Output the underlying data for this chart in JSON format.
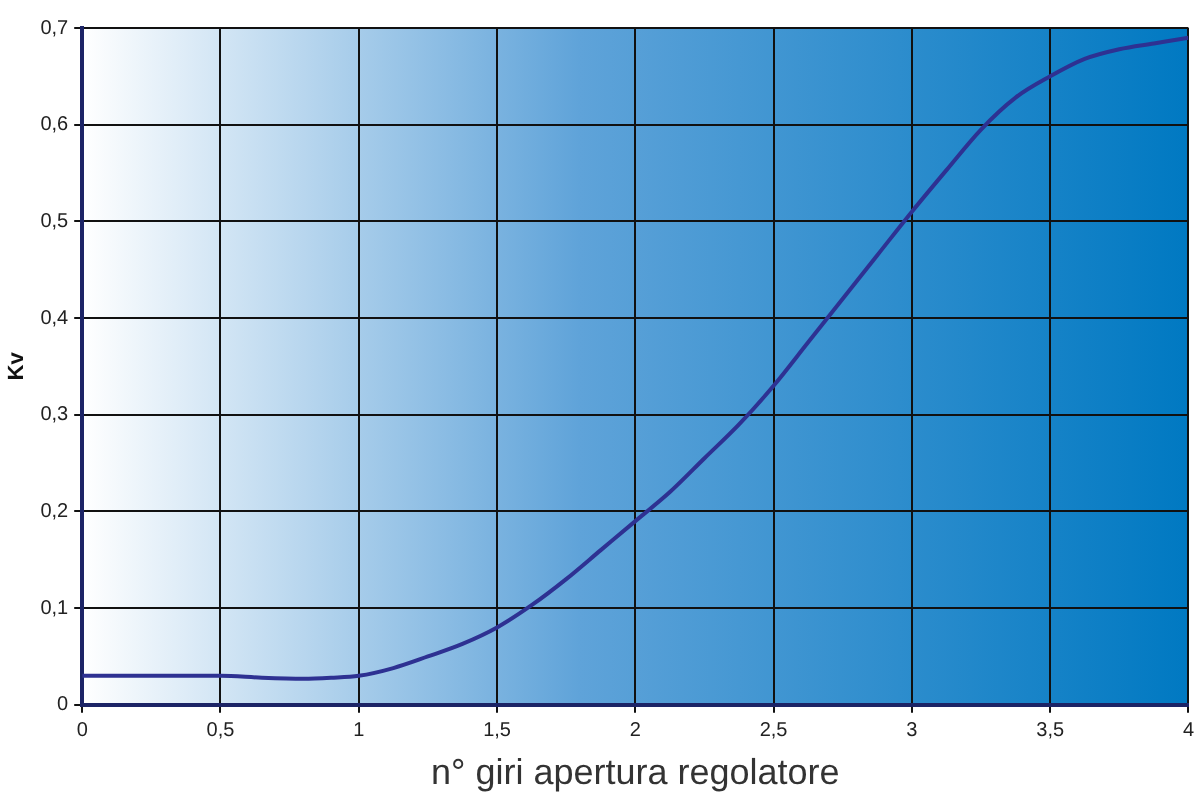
{
  "chart_data": {
    "type": "line",
    "xlabel": "n° giri apertura regolatore",
    "ylabel": "Kv",
    "series": [
      {
        "color": "#2e3192",
        "x": [
          0,
          0.25,
          0.5,
          0.65,
          0.8,
          0.9,
          1,
          1.125,
          1.25,
          1.375,
          1.5,
          1.625,
          1.75,
          1.875,
          2,
          2.125,
          2.25,
          2.375,
          2.5,
          2.625,
          2.75,
          2.875,
          3,
          3.125,
          3.25,
          3.375,
          3.5,
          3.625,
          3.75,
          3.875,
          4
        ],
        "values": [
          0.03,
          0.03,
          0.03,
          0.028,
          0.027,
          0.028,
          0.03,
          0.038,
          0.05,
          0.063,
          0.08,
          0.103,
          0.13,
          0.16,
          0.19,
          0.22,
          0.255,
          0.29,
          0.33,
          0.375,
          0.42,
          0.465,
          0.51,
          0.553,
          0.595,
          0.628,
          0.65,
          0.668,
          0.678,
          0.684,
          0.69
        ]
      }
    ],
    "xlim": [
      0,
      4
    ],
    "xticks": [
      0,
      {
        "value": 0.5,
        "label": "0,5"
      },
      1,
      {
        "value": 1.5,
        "label": "1,5"
      },
      2,
      {
        "value": 2.5,
        "label": "2,5"
      },
      3,
      {
        "value": 3.5,
        "label": "3,5"
      },
      4
    ],
    "ylim": [
      0,
      0.7
    ],
    "yticks": [
      0,
      {
        "value": 0.1,
        "label": "0,1"
      },
      {
        "value": 0.2,
        "label": "0,2"
      },
      {
        "value": 0.3,
        "label": "0,3"
      },
      {
        "value": 0.4,
        "label": "0,4"
      },
      {
        "value": 0.5,
        "label": "0,5"
      },
      {
        "value": 0.6,
        "label": "0,6"
      },
      {
        "value": 0.7,
        "label": "0,7"
      }
    ],
    "grid": true,
    "legend": false,
    "marker": "none",
    "line_style": "solid"
  }
}
